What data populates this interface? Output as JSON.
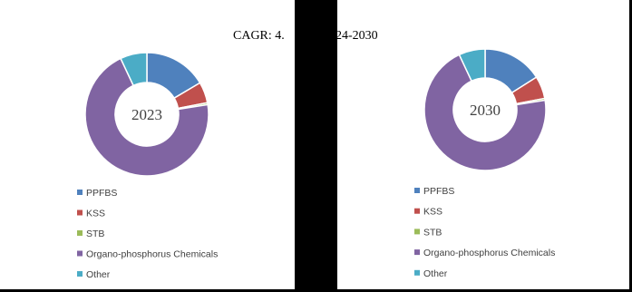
{
  "annotation_left": "CAGR:  4.",
  "annotation_right": "24-2030",
  "chart_data": [
    {
      "type": "donut",
      "center_label": "2023",
      "categories": [
        "PPFBS",
        "KSS",
        "STB",
        "Organo-phosphorus Chemicals",
        "Other"
      ],
      "values": [
        16.5,
        5.5,
        0.5,
        70.5,
        7
      ],
      "colors": [
        "#4f81bd",
        "#c0504d",
        "#9bbb59",
        "#8064a2",
        "#4bacc6"
      ]
    },
    {
      "type": "donut",
      "center_label": "2030",
      "categories": [
        "PPFBS",
        "KSS",
        "STB",
        "Organo-phosphorus Chemicals",
        "Other"
      ],
      "values": [
        16,
        6,
        0.5,
        70.5,
        7
      ],
      "colors": [
        "#4f81bd",
        "#c0504d",
        "#9bbb59",
        "#8064a2",
        "#4bacc6"
      ]
    }
  ]
}
